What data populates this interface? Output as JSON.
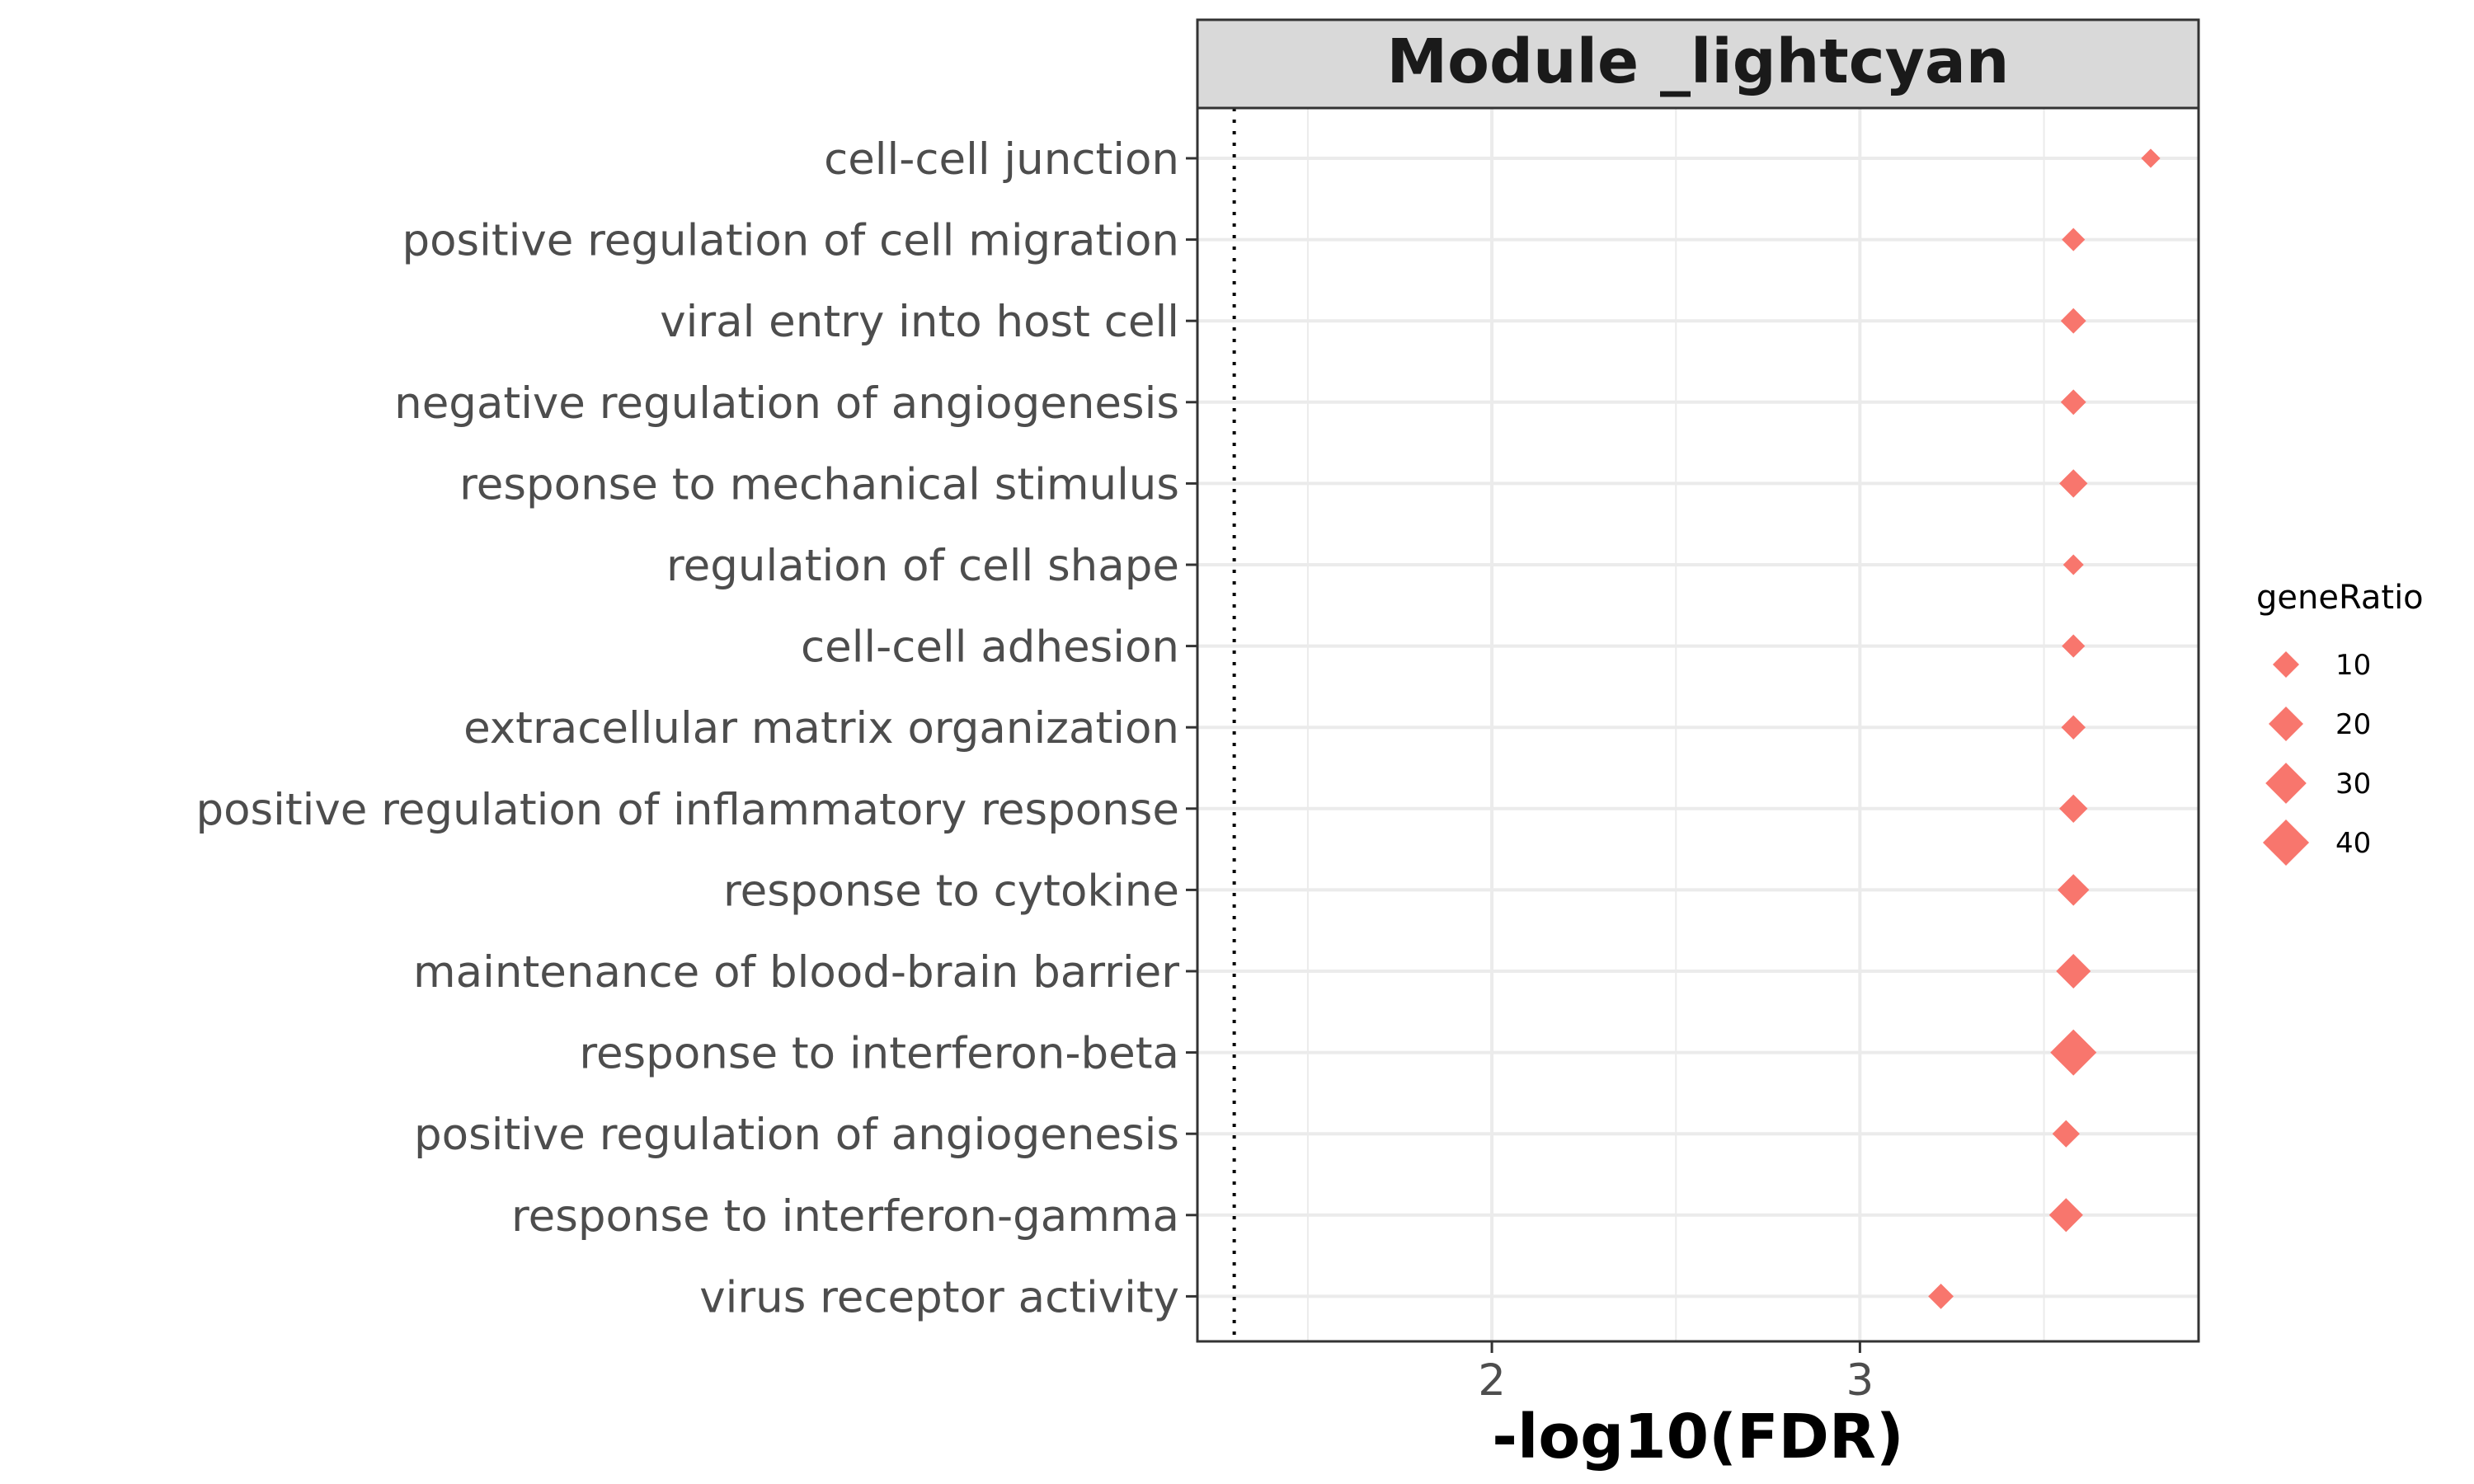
{
  "chart_data": {
    "type": "scatter",
    "title": "Module _lightcyan",
    "xlabel": "-log10(FDR)",
    "ylabel": "",
    "xlim": [
      1.2,
      3.92
    ],
    "x_ticks": [
      2,
      3
    ],
    "reference_line": 1.3,
    "point_color": "#F8766D",
    "marker": "diamond",
    "grid": true,
    "legend_position": "right",
    "legend": {
      "title": "geneRatio",
      "entries": [
        {
          "label": "10",
          "value": 10
        },
        {
          "label": "20",
          "value": 20
        },
        {
          "label": "30",
          "value": 30
        },
        {
          "label": "40",
          "value": 40
        }
      ]
    },
    "points": [
      {
        "term": "cell-cell junction",
        "x": 3.79,
        "size": 4
      },
      {
        "term": "positive regulation of cell migration",
        "x": 3.58,
        "size": 7
      },
      {
        "term": "viral entry into host cell",
        "x": 3.58,
        "size": 9
      },
      {
        "term": "negative regulation of angiogenesis",
        "x": 3.58,
        "size": 9
      },
      {
        "term": "response to mechanical stimulus",
        "x": 3.58,
        "size": 12
      },
      {
        "term": "regulation of cell shape",
        "x": 3.58,
        "size": 5
      },
      {
        "term": "cell-cell adhesion",
        "x": 3.58,
        "size": 7
      },
      {
        "term": "extracellular matrix organization",
        "x": 3.58,
        "size": 8
      },
      {
        "term": "positive regulation of inflammatory response",
        "x": 3.58,
        "size": 12
      },
      {
        "term": "response to cytokine",
        "x": 3.58,
        "size": 16
      },
      {
        "term": "maintenance of blood-brain barrier",
        "x": 3.58,
        "size": 20
      },
      {
        "term": "response to interferon-beta",
        "x": 3.58,
        "size": 40
      },
      {
        "term": "positive regulation of angiogenesis",
        "x": 3.56,
        "size": 11
      },
      {
        "term": "response to interferon-gamma",
        "x": 3.56,
        "size": 19
      },
      {
        "term": "virus receptor activity",
        "x": 3.22,
        "size": 9
      }
    ]
  }
}
